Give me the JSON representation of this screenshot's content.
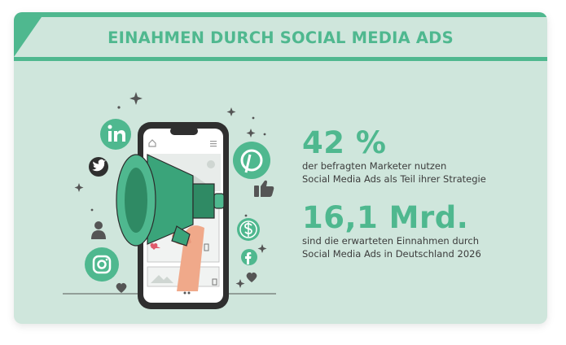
{
  "header": {
    "title": "EINAHMEN DURCH SOCIAL MEDIA ADS"
  },
  "stats": [
    {
      "value": "42 %",
      "line1": "der befragten Marketer nutzen",
      "line2": "Social Media Ads als Teil ihrer Strategie"
    },
    {
      "value": "16,1 Mrd.",
      "line1": "sind die erwarteten Einnahmen durch",
      "line2": "Social Media Ads in Deutschland 2026"
    }
  ],
  "icons": [
    "linkedin-icon",
    "twitter-icon",
    "pinterest-icon",
    "instagram-icon",
    "facebook-icon",
    "dollar-icon",
    "thumbs-up-icon",
    "heart-icon",
    "user-icon",
    "megaphone-icon",
    "smartphone-icon"
  ],
  "colors": {
    "accent": "#4fb88f",
    "background": "#cfe6dc",
    "text": "#3c3c3c",
    "dark": "#2f2f2f"
  }
}
